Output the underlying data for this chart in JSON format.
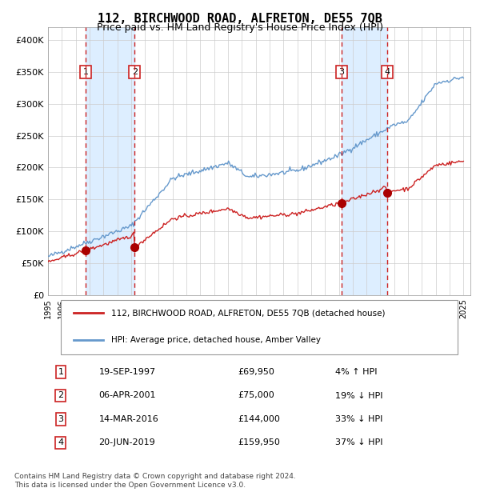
{
  "title": "112, BIRCHWOOD ROAD, ALFRETON, DE55 7QB",
  "subtitle": "Price paid vs. HM Land Registry's House Price Index (HPI)",
  "legend_line1": "112, BIRCHWOOD ROAD, ALFRETON, DE55 7QB (detached house)",
  "legend_line2": "HPI: Average price, detached house, Amber Valley",
  "footer1": "Contains HM Land Registry data © Crown copyright and database right 2024.",
  "footer2": "This data is licensed under the Open Government Licence v3.0.",
  "transactions": [
    {
      "num": 1,
      "date": "19-SEP-1997",
      "price": 69950,
      "pct": "4%",
      "dir": "↑"
    },
    {
      "num": 2,
      "date": "06-APR-2001",
      "price": 75000,
      "pct": "19%",
      "dir": "↓"
    },
    {
      "num": 3,
      "date": "14-MAR-2016",
      "price": 144000,
      "pct": "33%",
      "dir": "↓"
    },
    {
      "num": 4,
      "date": "20-JUN-2019",
      "price": 159950,
      "pct": "37%",
      "dir": "↓"
    }
  ],
  "transaction_years": [
    1997.72,
    2001.26,
    2016.2,
    2019.47
  ],
  "transaction_prices": [
    69950,
    75000,
    144000,
    159950
  ],
  "hpi_line_color": "#6699cc",
  "sale_line_color": "#cc2222",
  "dot_color": "#aa0000",
  "dashed_color": "#cc2222",
  "shade_color": "#ddeeff",
  "box_color": "#cc2222",
  "ylim_max": 420000,
  "ylim_min": 0,
  "year_start": 1995,
  "year_end": 2025
}
